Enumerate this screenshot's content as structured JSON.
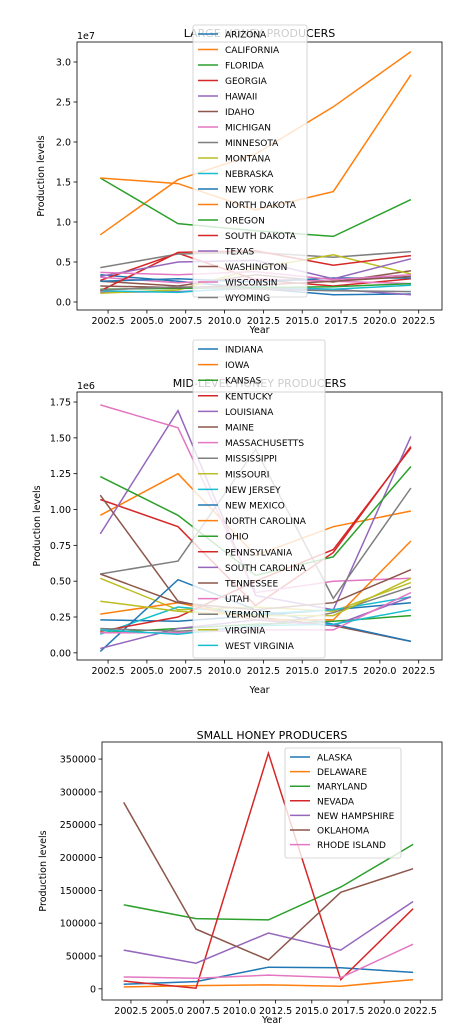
{
  "colors": [
    "#1f77b4",
    "#ff7f0e",
    "#2ca02c",
    "#d62728",
    "#9467bd",
    "#8c564b",
    "#e377c2",
    "#7f7f7f",
    "#bcbd22",
    "#17becf"
  ],
  "chart_data": [
    {
      "type": "line",
      "title": "LARGE HONEY PRODUCERS",
      "xlabel": "Year",
      "ylabel": "Production levels",
      "offset_label": "1e7",
      "xlim": [
        2000.5,
        2024.0
      ],
      "ylim": [
        -1000000.0,
        32500000.0
      ],
      "xticks": [
        2002.5,
        2005.0,
        2007.5,
        2010.0,
        2012.5,
        2015.0,
        2017.5,
        2020.0,
        2022.5
      ],
      "xtick_labels": [
        "2002.5",
        "2005.0",
        "2007.5",
        "2010.0",
        "2012.5",
        "2015.0",
        "2017.5",
        "2020.0",
        "2022.5"
      ],
      "yticks": [
        0,
        5000000,
        10000000,
        15000000,
        20000000,
        25000000,
        30000000
      ],
      "ytick_labels": [
        "0.0",
        "0.5",
        "1.0",
        "1.5",
        "2.0",
        "2.5",
        "3.0"
      ],
      "legend_position": "top-center",
      "x": [
        2002,
        2007,
        2012,
        2017,
        2022
      ],
      "series": [
        {
          "name": "ARIZONA",
          "values": [
            3400000,
            2600000,
            1700000,
            900000,
            1000000
          ]
        },
        {
          "name": "CALIFORNIA",
          "values": [
            8400000,
            15300000,
            18500000,
            24400000,
            31300000
          ]
        },
        {
          "name": "FLORIDA",
          "values": [
            15500000,
            9800000,
            8900000,
            8200000,
            12800000
          ]
        },
        {
          "name": "GEORGIA",
          "values": [
            2700000,
            6100000,
            2800000,
            2000000,
            2900000
          ]
        },
        {
          "name": "HAWAII",
          "values": [
            1200000,
            1300000,
            1700000,
            1600000,
            900000
          ]
        },
        {
          "name": "IDAHO",
          "values": [
            2600000,
            2000000,
            3400000,
            2500000,
            3900000
          ]
        },
        {
          "name": "MICHIGAN",
          "values": [
            3100000,
            2400000,
            2900000,
            2600000,
            2300000
          ]
        },
        {
          "name": "MINNESOTA",
          "values": [
            4300000,
            6000000,
            6200000,
            5600000,
            6300000
          ]
        },
        {
          "name": "MONTANA",
          "values": [
            1100000,
            1500000,
            4200000,
            5900000,
            3500000
          ]
        },
        {
          "name": "NEBRASKA",
          "values": [
            1400000,
            1200000,
            1900000,
            1600000,
            2100000
          ]
        },
        {
          "name": "NEW YORK",
          "values": [
            2600000,
            2900000,
            2500000,
            3000000,
            3000000
          ]
        },
        {
          "name": "NORTH DAKOTA",
          "values": [
            15500000,
            14800000,
            11500000,
            13800000,
            28400000
          ]
        },
        {
          "name": "OREGON",
          "values": [
            1600000,
            1700000,
            1800000,
            1900000,
            2300000
          ]
        },
        {
          "name": "SOUTH DAKOTA",
          "values": [
            1400000,
            6200000,
            6400000,
            4600000,
            5800000
          ]
        },
        {
          "name": "TEXAS",
          "values": [
            3200000,
            5000000,
            5200000,
            2900000,
            5400000
          ]
        },
        {
          "name": "WASHINGTON",
          "values": [
            2000000,
            1800000,
            2100000,
            2600000,
            3200000
          ]
        },
        {
          "name": "WISCONSIN",
          "values": [
            3700000,
            3400000,
            3800000,
            2800000,
            3400000
          ]
        },
        {
          "name": "WYOMING",
          "values": [
            1500000,
            1900000,
            1600000,
            1400000,
            1300000
          ]
        }
      ]
    },
    {
      "type": "line",
      "title": "MID-LEVEL HONEY PRODUCERS",
      "xlabel": "Year",
      "ylabel": "Production levels",
      "offset_label": "1e6",
      "xlim": [
        2000.5,
        2024.0
      ],
      "ylim": [
        -50000.0,
        1820000.0
      ],
      "xticks": [
        2002.5,
        2005.0,
        2007.5,
        2010.0,
        2012.5,
        2015.0,
        2017.5,
        2020.0,
        2022.5
      ],
      "xtick_labels": [
        "2002.5",
        "2005.0",
        "2007.5",
        "2010.0",
        "2012.5",
        "2015.0",
        "2017.5",
        "2020.0",
        "2022.5"
      ],
      "yticks": [
        0,
        250000,
        500000,
        750000,
        1000000,
        1250000,
        1500000,
        1750000
      ],
      "ytick_labels": [
        "0.00",
        "0.25",
        "0.50",
        "0.75",
        "1.00",
        "1.25",
        "1.50",
        "1.75"
      ],
      "legend_position": "top-center",
      "x": [
        2002,
        2007,
        2012,
        2017,
        2022
      ],
      "series": [
        {
          "name": "INDIANA",
          "values": [
            230000,
            220000,
            260000,
            300000,
            350000
          ]
        },
        {
          "name": "IOWA",
          "values": [
            960000,
            1250000,
            680000,
            880000,
            990000
          ]
        },
        {
          "name": "KANSAS",
          "values": [
            140000,
            170000,
            200000,
            220000,
            260000
          ]
        },
        {
          "name": "KENTUCKY",
          "values": [
            1070000,
            880000,
            330000,
            700000,
            1440000
          ]
        },
        {
          "name": "LOUISIANA",
          "values": [
            830000,
            1690000,
            400000,
            300000,
            1510000
          ]
        },
        {
          "name": "MAINE",
          "values": [
            1100000,
            360000,
            250000,
            190000,
            80000
          ]
        },
        {
          "name": "MASSACHUSETTS",
          "values": [
            1730000,
            1570000,
            420000,
            500000,
            520000
          ]
        },
        {
          "name": "MISSISSIPPI",
          "values": [
            550000,
            640000,
            1420000,
            380000,
            1150000
          ]
        },
        {
          "name": "MISSOURI",
          "values": [
            520000,
            300000,
            320000,
            290000,
            490000
          ]
        },
        {
          "name": "NEW JERSEY",
          "values": [
            130000,
            320000,
            270000,
            300000,
            390000
          ]
        },
        {
          "name": "NEW MEXICO",
          "values": [
            10000,
            510000,
            300000,
            200000,
            80000
          ]
        },
        {
          "name": "NORTH CAROLINA",
          "values": [
            270000,
            350000,
            230000,
            230000,
            780000
          ]
        },
        {
          "name": "OHIO",
          "values": [
            1230000,
            960000,
            540000,
            670000,
            1300000
          ]
        },
        {
          "name": "PENNSYLVANIA",
          "values": [
            150000,
            250000,
            500000,
            720000,
            1430000
          ]
        },
        {
          "name": "SOUTH CAROLINA",
          "values": [
            30000,
            170000,
            230000,
            190000,
            390000
          ]
        },
        {
          "name": "TENNESSEE",
          "values": [
            550000,
            350000,
            300000,
            350000,
            580000
          ]
        },
        {
          "name": "UTAH",
          "values": [
            140000,
            140000,
            160000,
            160000,
            420000
          ]
        },
        {
          "name": "VERMONT",
          "values": [
            170000,
            150000,
            180000,
            280000,
            460000
          ]
        },
        {
          "name": "VIRGINIA",
          "values": [
            360000,
            290000,
            260000,
            260000,
            520000
          ]
        },
        {
          "name": "WEST VIRGINIA",
          "values": [
            160000,
            130000,
            190000,
            200000,
            300000
          ]
        }
      ]
    },
    {
      "type": "line",
      "title": "SMALL HONEY PRODUCERS",
      "xlabel": "Year",
      "ylabel": "Production levels",
      "xlim": [
        2000.5,
        2024.0
      ],
      "ylim": [
        -17000,
        376000
      ],
      "xticks": [
        2002.5,
        2005.0,
        2007.5,
        2010.0,
        2012.5,
        2015.0,
        2017.5,
        2020.0,
        2022.5
      ],
      "xtick_labels": [
        "2002.5",
        "2005.0",
        "2007.5",
        "2010.0",
        "2012.5",
        "2015.0",
        "2017.5",
        "2020.0",
        "2022.5"
      ],
      "yticks": [
        0,
        50000,
        100000,
        150000,
        200000,
        250000,
        300000,
        350000
      ],
      "ytick_labels": [
        "0",
        "50000",
        "100000",
        "150000",
        "200000",
        "250000",
        "300000",
        "350000"
      ],
      "legend_position": "top-right",
      "x": [
        2002,
        2007,
        2012,
        2017,
        2022
      ],
      "series": [
        {
          "name": "ALASKA",
          "values": [
            7000,
            11000,
            33000,
            32000,
            25000
          ]
        },
        {
          "name": "DELAWARE",
          "values": [
            3000,
            5000,
            6000,
            4000,
            14000
          ]
        },
        {
          "name": "MARYLAND",
          "values": [
            128000,
            107000,
            105000,
            155000,
            220000
          ]
        },
        {
          "name": "NEVADA",
          "values": [
            12000,
            1000,
            359000,
            14000,
            122000
          ]
        },
        {
          "name": "NEW HAMPSHIRE",
          "values": [
            59000,
            39000,
            85000,
            59000,
            133000
          ]
        },
        {
          "name": "OKLAHOMA",
          "values": [
            284000,
            91000,
            44000,
            147000,
            183000
          ]
        },
        {
          "name": "RHODE ISLAND",
          "values": [
            18000,
            16000,
            21000,
            17000,
            68000
          ]
        }
      ]
    }
  ]
}
